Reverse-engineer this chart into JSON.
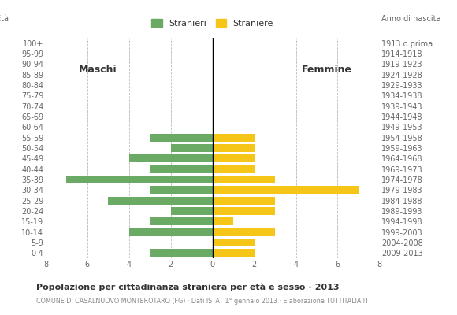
{
  "age_groups": [
    "0-4",
    "5-9",
    "10-14",
    "15-19",
    "20-24",
    "25-29",
    "30-34",
    "35-39",
    "40-44",
    "45-49",
    "50-54",
    "55-59",
    "60-64",
    "65-69",
    "70-74",
    "75-79",
    "80-84",
    "85-89",
    "90-94",
    "95-99",
    "100+"
  ],
  "birth_years": [
    "2009-2013",
    "2004-2008",
    "1999-2003",
    "1994-1998",
    "1989-1993",
    "1984-1988",
    "1979-1983",
    "1974-1978",
    "1969-1973",
    "1964-1968",
    "1959-1963",
    "1954-1958",
    "1949-1953",
    "1944-1948",
    "1939-1943",
    "1934-1938",
    "1929-1933",
    "1924-1928",
    "1919-1923",
    "1914-1918",
    "1913 o prima"
  ],
  "males": [
    3,
    0,
    4,
    3,
    2,
    5,
    3,
    7,
    3,
    4,
    2,
    3,
    0,
    0,
    0,
    0,
    0,
    0,
    0,
    0,
    0
  ],
  "females": [
    2,
    2,
    3,
    1,
    3,
    3,
    7,
    3,
    2,
    2,
    2,
    2,
    0,
    0,
    0,
    0,
    0,
    0,
    0,
    0,
    0
  ],
  "male_color": "#6aaa64",
  "female_color": "#f5c518",
  "background_color": "#ffffff",
  "grid_color": "#bbbbbb",
  "title": "Popolazione per cittadinanza straniera per età e sesso - 2013",
  "subtitle": "COMUNE DI CASALNUOVO MONTEROTARO (FG) · Dati ISTAT 1° gennaio 2013 · Elaborazione TUTTITALIA.IT",
  "xlabel_left": "Maschi",
  "xlabel_right": "Femmine",
  "legend_male": "Stranieri",
  "legend_female": "Straniere",
  "age_label": "Età",
  "birth_year_label": "Anno di nascita",
  "xlim": 8
}
